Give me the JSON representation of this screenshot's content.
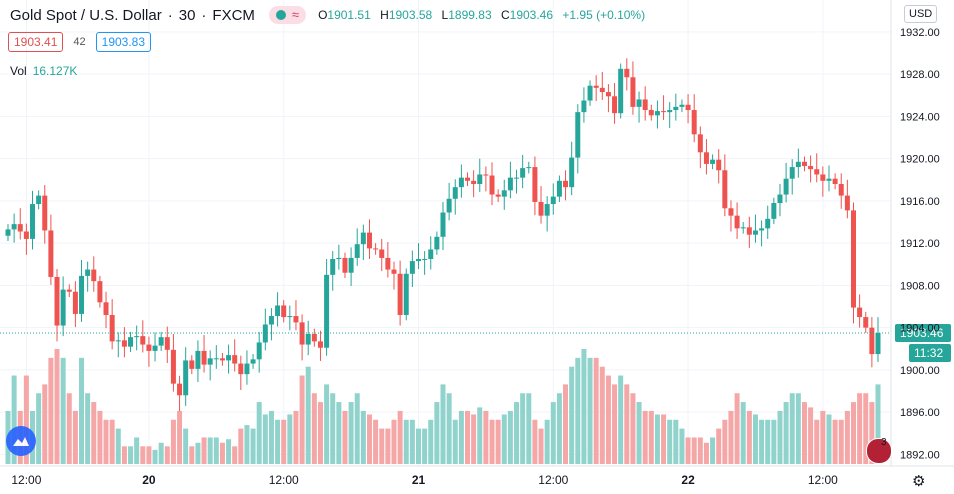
{
  "header": {
    "symbol": "Gold Spot / U.S. Dollar",
    "interval": "30",
    "exchange": "FXCM",
    "ohlc": {
      "o_label": "O",
      "o": "1901.51",
      "h_label": "H",
      "h": "1903.58",
      "l_label": "L",
      "l": "1899.83",
      "c_label": "C",
      "c": "1903.46",
      "change": "+1.95 (+0.10%)"
    }
  },
  "quote": {
    "bid": "1903.41",
    "spread": "42",
    "ask": "1903.83"
  },
  "volume": {
    "label": "Vol",
    "value": "16.127K"
  },
  "currency": "USD",
  "price_tag": {
    "price": "1903.46",
    "countdown": "11:32"
  },
  "flag_badge": "3",
  "colors": {
    "up": "#26a69a",
    "down": "#ef5350",
    "vol_up": "#8fd3cc",
    "vol_down": "#f5a6a6",
    "grid": "#f0f3fa",
    "text": "#131722"
  },
  "chart_data": {
    "type": "candlestick",
    "title": "Gold Spot / U.S. Dollar",
    "x_ticks": [
      "12:00",
      "20",
      "12:00",
      "21",
      "12:00",
      "22",
      "12:00"
    ],
    "y_ticks": [
      "1932.00",
      "1928.00",
      "1924.00",
      "1920.00",
      "1916.00",
      "1912.00",
      "1908.00",
      "1904.00",
      "1900.00",
      "1896.00",
      "1892.00"
    ],
    "ylim": [
      1891.0,
      1933.5
    ],
    "close": [
      1913.3,
      1913.8,
      1913.1,
      1912.4,
      1915.7,
      1916.5,
      1913.2,
      1908.8,
      1904.2,
      1907.6,
      1907.4,
      1905.3,
      1908.9,
      1909.5,
      1908.4,
      1906.4,
      1905.2,
      1902.7,
      1902.8,
      1902.2,
      1903.1,
      1903.2,
      1902.4,
      1901.8,
      1902.3,
      1903.1,
      1901.9,
      1898.7,
      1897.6,
      1900.9,
      1900.1,
      1901.8,
      1900.5,
      1901.1,
      1901.1,
      1900.9,
      1901.4,
      1900.6,
      1899.6,
      1900.6,
      1901.0,
      1902.6,
      1904.3,
      1905.1,
      1906.1,
      1905.0,
      1905.1,
      1904.5,
      1902.4,
      1903.4,
      1902.7,
      1902.1,
      1909.0,
      1910.5,
      1910.6,
      1909.2,
      1910.6,
      1911.9,
      1913.0,
      1911.5,
      1911.4,
      1910.6,
      1909.5,
      1909.1,
      1905.2,
      1909.1,
      1910.3,
      1910.5,
      1910.5,
      1911.4,
      1912.6,
      1914.9,
      1916.2,
      1917.3,
      1918.2,
      1917.9,
      1917.6,
      1918.5,
      1918.4,
      1916.6,
      1916.4,
      1917.0,
      1918.2,
      1918.2,
      1919.1,
      1919.2,
      1915.9,
      1914.6,
      1915.7,
      1916.4,
      1917.9,
      1917.3,
      1920.1,
      1924.4,
      1925.5,
      1926.9,
      1926.7,
      1926.3,
      1925.9,
      1924.3,
      1928.5,
      1927.7,
      1924.9,
      1925.6,
      1924.6,
      1924.1,
      1924.5,
      1924.4,
      1924.6,
      1924.9,
      1925.1,
      1924.6,
      1922.3,
      1920.6,
      1919.5,
      1919.9,
      1918.9,
      1915.3,
      1914.6,
      1913.4,
      1913.5,
      1912.8,
      1913.2,
      1913.4,
      1914.3,
      1915.8,
      1916.6,
      1918.1,
      1919.2,
      1919.7,
      1919.3,
      1919.0,
      1918.5,
      1917.9,
      1918.1,
      1917.6,
      1916.5,
      1915.1,
      1905.9,
      1905.0,
      1904.0,
      1901.5,
      1903.5
    ],
    "volume": [
      30,
      50,
      30,
      50,
      30,
      40,
      45,
      60,
      65,
      60,
      40,
      30,
      60,
      40,
      35,
      30,
      25,
      25,
      20,
      10,
      10,
      15,
      10,
      10,
      8,
      12,
      10,
      25,
      30,
      20,
      10,
      12,
      15,
      15,
      15,
      12,
      14,
      10,
      20,
      22,
      20,
      35,
      28,
      30,
      25,
      25,
      28,
      30,
      50,
      55,
      40,
      35,
      45,
      40,
      35,
      30,
      35,
      40,
      30,
      28,
      25,
      20,
      20,
      25,
      30,
      25,
      25,
      20,
      20,
      25,
      35,
      45,
      40,
      25,
      30,
      30,
      28,
      32,
      30,
      25,
      25,
      28,
      30,
      35,
      40,
      40,
      25,
      20,
      25,
      35,
      40,
      45,
      55,
      60,
      65,
      60,
      60,
      55,
      50,
      45,
      50,
      45,
      40,
      35,
      30,
      30,
      28,
      28,
      25,
      25,
      20,
      15,
      15,
      15,
      12,
      15,
      20,
      25,
      30,
      40,
      35,
      30,
      28,
      25,
      25,
      25,
      30,
      35,
      40,
      40,
      35,
      32,
      25,
      30,
      28,
      25,
      25,
      30,
      35,
      40,
      40,
      35,
      45
    ]
  }
}
